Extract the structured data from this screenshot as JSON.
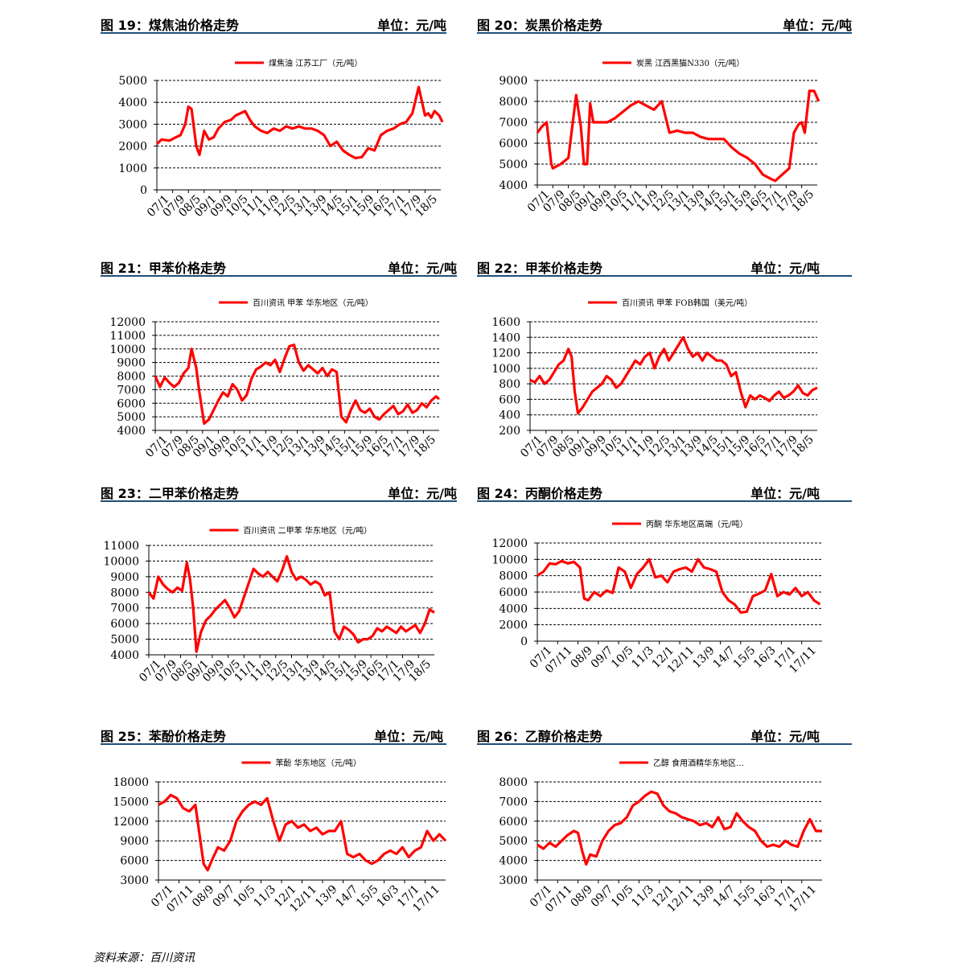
{
  "footer": {
    "source": "资料来源：百川资讯"
  },
  "panels": [
    {
      "title": "图 19：煤焦油价格走势",
      "unit": "单位：元/吨",
      "chart_data": {
        "type": "line",
        "title": "",
        "legend": "煤焦油 江苏工厂（元/吨）",
        "color": "#ff0000",
        "yticks": [
          0,
          1000,
          2000,
          3000,
          4000,
          5000
        ],
        "ylim": [
          0,
          5000
        ],
        "xticks": [
          "07/1",
          "07/9",
          "08/5",
          "09/1",
          "09/9",
          "10/5",
          "11/1",
          "11/9",
          "12/5",
          "13/1",
          "13/9",
          "14/5",
          "15/1",
          "15/9",
          "16/5",
          "17/1",
          "17/9",
          "18/5"
        ],
        "x": [
          0,
          0.3,
          0.8,
          1.2,
          1.5,
          1.8,
          2.0,
          2.2,
          2.5,
          2.7,
          3.0,
          3.3,
          3.6,
          3.9,
          4.3,
          4.7,
          5.0,
          5.3,
          5.6,
          5.9,
          6.2,
          6.6,
          7.0,
          7.4,
          7.8,
          8.2,
          8.6,
          9.0,
          9.4,
          9.8,
          10.2,
          10.6,
          11.0,
          11.4,
          11.8,
          12.2,
          12.6,
          13.0,
          13.4,
          13.8,
          14.2,
          14.6,
          15.0,
          15.4,
          15.8,
          16.2,
          16.6,
          17.0,
          17.2,
          17.4,
          17.6,
          17.9,
          18.1
        ],
        "y": [
          2100,
          2300,
          2250,
          2400,
          2500,
          3000,
          3800,
          3700,
          2000,
          1600,
          2700,
          2300,
          2400,
          2800,
          3100,
          3200,
          3400,
          3500,
          3600,
          3200,
          2900,
          2700,
          2600,
          2800,
          2700,
          2900,
          2800,
          2900,
          2800,
          2800,
          2700,
          2500,
          2000,
          2200,
          1800,
          1600,
          1450,
          1500,
          1900,
          1800,
          2500,
          2700,
          2800,
          3000,
          3100,
          3500,
          4700,
          3400,
          3500,
          3300,
          3600,
          3400,
          3100
        ]
      }
    },
    {
      "title": "图 20：炭黑价格走势",
      "unit": "单位：元/吨",
      "chart_data": {
        "type": "line",
        "title": "",
        "legend": "炭黑 江西黑猫N330（元/吨）",
        "color": "#ff0000",
        "yticks": [
          4000,
          5000,
          6000,
          7000,
          8000,
          9000
        ],
        "ylim": [
          4000,
          9000
        ],
        "xticks": [
          "07/1",
          "07/9",
          "08/5",
          "09/1",
          "09/9",
          "10/5",
          "11/1",
          "11/9",
          "12/5",
          "13/1",
          "13/9",
          "14/5",
          "15/1",
          "15/9",
          "16/5",
          "17/1",
          "17/9",
          "18/5"
        ],
        "x": [
          0,
          0.3,
          0.6,
          0.9,
          1.0,
          1.5,
          2.0,
          2.2,
          2.5,
          2.8,
          3.0,
          3.2,
          3.4,
          3.6,
          3.8,
          4.0,
          4.5,
          5.0,
          5.5,
          6.0,
          6.5,
          7.0,
          7.5,
          8.0,
          8.5,
          9.0,
          9.5,
          10.0,
          10.5,
          11.0,
          11.5,
          12.0,
          12.5,
          13.0,
          13.5,
          14.0,
          14.5,
          15.0,
          15.3,
          15.6,
          15.9,
          16.2,
          16.5,
          16.8,
          17.0,
          17.2,
          17.5,
          17.8,
          18.1
        ],
        "y": [
          6500,
          6800,
          7000,
          5000,
          4800,
          5000,
          5300,
          6500,
          8300,
          6800,
          5000,
          5000,
          7900,
          7000,
          7000,
          7000,
          7000,
          7200,
          7500,
          7800,
          8000,
          7800,
          7600,
          8000,
          6500,
          6600,
          6500,
          6500,
          6300,
          6200,
          6200,
          6200,
          5800,
          5500,
          5300,
          5000,
          4500,
          4300,
          4200,
          4400,
          4600,
          4800,
          6500,
          6900,
          7000,
          6500,
          8500,
          8500,
          8000
        ]
      }
    },
    {
      "title": "图 21：甲苯价格走势",
      "unit": "单位：元/吨",
      "chart_data": {
        "type": "line",
        "title": "",
        "legend": "百川资讯 甲苯 华东地区（元/吨）",
        "color": "#ff0000",
        "yticks": [
          4000,
          5000,
          6000,
          7000,
          8000,
          9000,
          10000,
          11000,
          12000
        ],
        "ylim": [
          4000,
          12000
        ],
        "xticks": [
          "07/1",
          "07/9",
          "08/5",
          "09/1",
          "09/9",
          "10/5",
          "11/1",
          "11/9",
          "12/5",
          "13/1",
          "13/9",
          "14/5",
          "15/1",
          "15/9",
          "16/5",
          "17/1",
          "17/9",
          "18/5"
        ],
        "x": [
          0,
          0.3,
          0.6,
          0.9,
          1.2,
          1.5,
          1.8,
          2.1,
          2.3,
          2.6,
          2.8,
          3.1,
          3.4,
          3.7,
          4.0,
          4.3,
          4.6,
          4.9,
          5.2,
          5.5,
          5.8,
          6.1,
          6.4,
          6.7,
          7.0,
          7.3,
          7.6,
          7.9,
          8.2,
          8.5,
          8.8,
          9.1,
          9.4,
          9.7,
          10.0,
          10.3,
          10.6,
          10.9,
          11.2,
          11.5,
          11.8,
          12.1,
          12.4,
          12.7,
          13.0,
          13.3,
          13.6,
          13.9,
          14.2,
          14.5,
          14.8,
          15.1,
          15.4,
          15.7,
          16.0,
          16.3,
          16.6,
          16.9,
          17.2,
          17.5,
          17.8,
          18.0
        ],
        "y": [
          8000,
          7200,
          7900,
          7500,
          7200,
          7500,
          8200,
          8600,
          10000,
          8600,
          6800,
          4500,
          4800,
          5500,
          6200,
          6800,
          6500,
          7400,
          7000,
          6200,
          6600,
          7800,
          8500,
          8700,
          9000,
          8800,
          9200,
          8300,
          9300,
          10200,
          10300,
          9000,
          8400,
          8800,
          8500,
          8200,
          8600,
          8000,
          8500,
          8300,
          5000,
          4600,
          5500,
          6200,
          5500,
          5300,
          5600,
          5000,
          4800,
          5200,
          5500,
          5800,
          5200,
          5400,
          5900,
          5300,
          5500,
          6000,
          5700,
          6200,
          6500,
          6300
        ]
      }
    },
    {
      "title": "图 22：甲苯价格走势",
      "unit": "单位：元/吨",
      "chart_data": {
        "type": "line",
        "title": "",
        "legend": "百川资讯 甲苯 FOB韩国（美元/吨）",
        "color": "#ff0000",
        "yticks": [
          200,
          400,
          600,
          800,
          1000,
          1200,
          1400,
          1600
        ],
        "ylim": [
          200,
          1600
        ],
        "xticks": [
          "07/1",
          "07/9",
          "08/5",
          "09/1",
          "09/9",
          "10/5",
          "11/1",
          "11/9",
          "12/5",
          "13/1",
          "13/9",
          "14/5",
          "15/1",
          "15/9",
          "16/5",
          "17/1",
          "17/9",
          "18/5"
        ],
        "x": [
          0,
          0.3,
          0.6,
          0.9,
          1.2,
          1.5,
          1.8,
          2.1,
          2.4,
          2.6,
          2.8,
          3.0,
          3.3,
          3.6,
          3.9,
          4.2,
          4.5,
          4.8,
          5.1,
          5.4,
          5.7,
          6.0,
          6.3,
          6.6,
          6.9,
          7.2,
          7.5,
          7.8,
          8.1,
          8.4,
          8.7,
          9.0,
          9.3,
          9.6,
          9.9,
          10.2,
          10.5,
          10.8,
          11.1,
          11.4,
          11.7,
          12.0,
          12.3,
          12.6,
          12.9,
          13.2,
          13.5,
          13.8,
          14.1,
          14.4,
          14.7,
          15.0,
          15.3,
          15.6,
          15.9,
          16.2,
          16.5,
          16.8,
          17.1,
          17.4,
          17.7,
          18.0
        ],
        "y": [
          850,
          820,
          900,
          800,
          850,
          950,
          1050,
          1100,
          1250,
          1150,
          700,
          420,
          500,
          600,
          700,
          750,
          800,
          900,
          850,
          750,
          800,
          900,
          1000,
          1100,
          1050,
          1150,
          1200,
          1000,
          1150,
          1250,
          1100,
          1200,
          1300,
          1400,
          1250,
          1150,
          1200,
          1100,
          1200,
          1150,
          1100,
          1100,
          1050,
          900,
          950,
          700,
          500,
          650,
          600,
          650,
          620,
          580,
          650,
          700,
          620,
          650,
          700,
          780,
          680,
          650,
          720,
          750
        ]
      }
    },
    {
      "title": "图 23：二甲苯价格走势",
      "unit": "单位：元/吨",
      "chart_data": {
        "type": "line",
        "title": "",
        "legend": "百川资讯 二甲苯 华东地区（元/吨）",
        "color": "#ff0000",
        "yticks": [
          4000,
          5000,
          6000,
          7000,
          8000,
          9000,
          10000,
          11000
        ],
        "ylim": [
          4000,
          11000
        ],
        "xticks": [
          "07/1",
          "07/9",
          "08/5",
          "09/1",
          "09/9",
          "10/5",
          "11/1",
          "11/9",
          "12/5",
          "13/1",
          "13/9",
          "14/5",
          "15/1",
          "15/9",
          "16/5",
          "17/1",
          "17/9",
          "18/5"
        ],
        "x": [
          0,
          0.3,
          0.6,
          0.9,
          1.2,
          1.5,
          1.8,
          2.1,
          2.4,
          2.6,
          2.8,
          3.0,
          3.3,
          3.6,
          3.9,
          4.2,
          4.5,
          4.8,
          5.1,
          5.4,
          5.7,
          6.0,
          6.3,
          6.6,
          6.9,
          7.2,
          7.5,
          7.8,
          8.1,
          8.4,
          8.7,
          9.0,
          9.3,
          9.6,
          9.9,
          10.2,
          10.5,
          10.8,
          11.1,
          11.4,
          11.7,
          12.0,
          12.3,
          12.6,
          12.9,
          13.2,
          13.5,
          13.8,
          14.1,
          14.4,
          14.7,
          15.0,
          15.3,
          15.6,
          15.9,
          16.2,
          16.5,
          16.8,
          17.1,
          17.4,
          17.7,
          18.0
        ],
        "y": [
          8000,
          7600,
          9000,
          8500,
          8200,
          8000,
          8300,
          8100,
          9900,
          8800,
          7000,
          4200,
          5500,
          6200,
          6500,
          6900,
          7200,
          7500,
          7000,
          6400,
          6800,
          7700,
          8600,
          9500,
          9200,
          9000,
          9300,
          9000,
          8700,
          9400,
          10300,
          9300,
          8800,
          9000,
          8800,
          8500,
          8700,
          8500,
          7800,
          8000,
          5500,
          5000,
          5800,
          5600,
          5300,
          4800,
          5000,
          5000,
          5200,
          5700,
          5500,
          5800,
          5600,
          5400,
          5800,
          5500,
          5700,
          5900,
          5400,
          6000,
          6900,
          6700
        ]
      }
    },
    {
      "title": "图 24：丙酮价格走势",
      "unit": "单位：元/吨",
      "chart_data": {
        "type": "line",
        "title": "",
        "legend": "丙酮 华东地区高端（元/吨）",
        "color": "#ff0000",
        "yticks": [
          0,
          2000,
          4000,
          6000,
          8000,
          10000,
          12000
        ],
        "ylim": [
          0,
          12000
        ],
        "xticks": [
          "07/1",
          "07/11",
          "08/9",
          "09/7",
          "10/5",
          "11/3",
          "12/1",
          "12/11",
          "13/9",
          "14/7",
          "15/5",
          "16/3",
          "17/1",
          "17/11"
        ],
        "x": [
          0,
          0.3,
          0.6,
          0.9,
          1.2,
          1.5,
          1.8,
          2.1,
          2.3,
          2.5,
          2.8,
          3.1,
          3.4,
          3.7,
          4.0,
          4.3,
          4.6,
          4.9,
          5.2,
          5.5,
          5.8,
          6.1,
          6.4,
          6.7,
          7.0,
          7.3,
          7.6,
          7.9,
          8.2,
          8.5,
          8.8,
          9.1,
          9.4,
          9.7,
          10.0,
          10.3,
          10.6,
          10.9,
          11.2,
          11.5,
          11.8,
          12.1,
          12.4,
          12.7,
          13.0,
          13.3,
          13.6,
          13.9
        ],
        "y": [
          8000,
          8500,
          9500,
          9400,
          9800,
          9500,
          9700,
          9000,
          5200,
          5000,
          6000,
          5500,
          6200,
          5900,
          9000,
          8500,
          6500,
          8200,
          9000,
          10000,
          7800,
          8000,
          7200,
          8500,
          8800,
          9000,
          8500,
          10000,
          9000,
          8800,
          8500,
          6000,
          5000,
          4500,
          3500,
          3600,
          5500,
          5800,
          6200,
          8200,
          5500,
          6000,
          5700,
          6500,
          5500,
          6000,
          5000,
          4500
        ]
      }
    },
    {
      "title": "图 25：苯酚价格走势",
      "unit": "单位：元/吨",
      "chart_data": {
        "type": "line",
        "title": "",
        "legend": "苯酚 华东地区（元/吨）",
        "color": "#ff0000",
        "yticks": [
          3000,
          6000,
          9000,
          12000,
          15000,
          18000
        ],
        "ylim": [
          3000,
          18000
        ],
        "xticks": [
          "07/1",
          "07/11",
          "08/9",
          "09/7",
          "10/5",
          "11/3",
          "12/1",
          "12/11",
          "13/9",
          "14/7",
          "15/5",
          "16/3",
          "17/1",
          "17/11"
        ],
        "x": [
          0,
          0.3,
          0.6,
          0.9,
          1.2,
          1.5,
          1.8,
          2.0,
          2.2,
          2.4,
          2.6,
          2.9,
          3.2,
          3.5,
          3.8,
          4.1,
          4.4,
          4.7,
          5.0,
          5.3,
          5.6,
          5.9,
          6.2,
          6.5,
          6.8,
          7.1,
          7.4,
          7.7,
          8.0,
          8.3,
          8.6,
          8.9,
          9.2,
          9.5,
          9.8,
          10.1,
          10.4,
          10.7,
          11.0,
          11.3,
          11.6,
          11.9,
          12.2,
          12.5,
          12.8,
          13.1,
          13.4,
          13.7,
          14.0
        ],
        "y": [
          14500,
          15000,
          16000,
          15500,
          14000,
          13500,
          14500,
          10000,
          5500,
          4500,
          6000,
          8000,
          7500,
          9000,
          12000,
          13500,
          14500,
          15000,
          14500,
          15500,
          12000,
          9000,
          11500,
          12000,
          11000,
          11500,
          10500,
          11000,
          10000,
          10500,
          10500,
          12000,
          7000,
          6500,
          7000,
          6000,
          5500,
          6000,
          7000,
          7500,
          7000,
          8000,
          6500,
          7500,
          8000,
          10500,
          9000,
          10000,
          9000
        ]
      }
    },
    {
      "title": "图 26：乙醇价格走势",
      "unit": "单位：元/吨",
      "chart_data": {
        "type": "line",
        "title": "",
        "legend": "乙醇 食用酒精华东地区…",
        "color": "#ff0000",
        "yticks": [
          3000,
          4000,
          5000,
          6000,
          7000,
          8000
        ],
        "ylim": [
          3000,
          8000
        ],
        "xticks": [
          "07/1",
          "07/11",
          "08/9",
          "09/7",
          "10/5",
          "11/3",
          "12/1",
          "12/11",
          "13/9",
          "14/7",
          "15/5",
          "16/3",
          "17/1",
          "17/11"
        ],
        "x": [
          0,
          0.3,
          0.6,
          0.9,
          1.2,
          1.5,
          1.8,
          2.0,
          2.2,
          2.4,
          2.6,
          2.9,
          3.2,
          3.5,
          3.8,
          4.1,
          4.4,
          4.7,
          5.0,
          5.3,
          5.6,
          5.9,
          6.2,
          6.5,
          6.8,
          7.1,
          7.4,
          7.7,
          8.0,
          8.3,
          8.6,
          8.9,
          9.2,
          9.5,
          9.8,
          10.1,
          10.4,
          10.7,
          11.0,
          11.3,
          11.6,
          11.9,
          12.2,
          12.5,
          12.8,
          13.1,
          13.4,
          13.7,
          14.0
        ],
        "y": [
          4800,
          4600,
          4900,
          4700,
          5000,
          5300,
          5500,
          5400,
          4500,
          3800,
          4300,
          4200,
          5000,
          5500,
          5800,
          5900,
          6200,
          6800,
          7000,
          7300,
          7500,
          7400,
          6800,
          6500,
          6400,
          6200,
          6100,
          6000,
          5800,
          5900,
          5700,
          6200,
          5600,
          5700,
          6400,
          6000,
          5700,
          5500,
          5000,
          4700,
          4800,
          4700,
          5000,
          4800,
          4700,
          5500,
          6100,
          5500,
          5500
        ]
      }
    }
  ]
}
